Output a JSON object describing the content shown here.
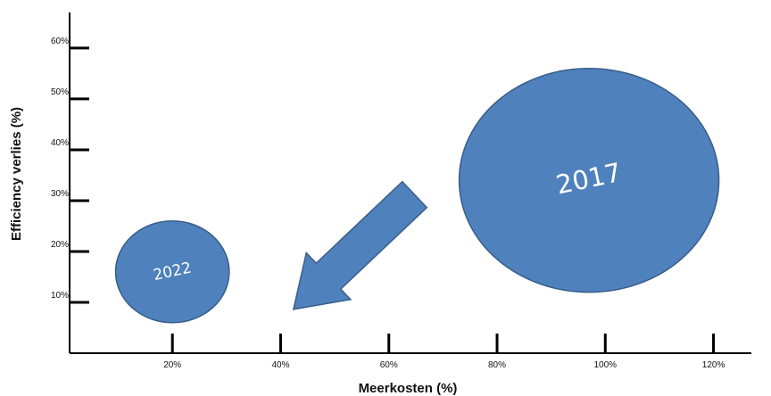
{
  "chart_data": {
    "type": "bubble",
    "xlabel": "Meerkosten (%)",
    "ylabel": "Efficiency verlies (%)",
    "x_ticks": [
      "20%",
      "40%",
      "60%",
      "80%",
      "100%",
      "120%"
    ],
    "y_ticks": [
      "10%",
      "20%",
      "30%",
      "40%",
      "50%",
      "60%"
    ],
    "x_tick_values": [
      20,
      40,
      60,
      80,
      100,
      120
    ],
    "y_tick_values": [
      10,
      20,
      30,
      40,
      50,
      60
    ],
    "xlim": [
      1,
      127
    ],
    "ylim": [
      0,
      67
    ],
    "grid": false,
    "points": [
      {
        "label": "2022",
        "x": 20,
        "y": 16,
        "x_extent": 21,
        "y_extent": 20,
        "label_size": 17,
        "label_rotation": -12
      },
      {
        "label": "2017",
        "x": 97,
        "y": 34,
        "x_extent": 48,
        "y_extent": 44,
        "label_size": 29,
        "label_rotation": -12
      }
    ],
    "annotation": {
      "type": "arrow",
      "direction": "from 2017 toward 2022"
    },
    "colors": {
      "bubble_fill": "#4F81BD",
      "bubble_stroke": "#385D8A",
      "axis": "#000000"
    }
  }
}
